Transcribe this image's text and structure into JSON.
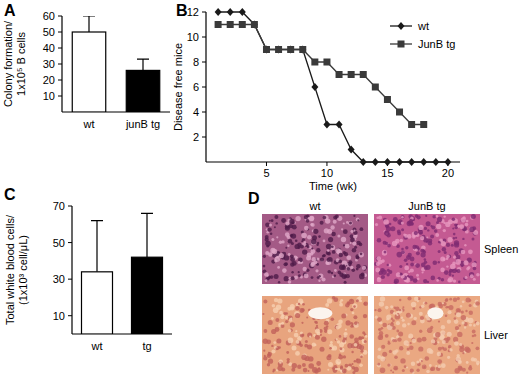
{
  "chart_data": [
    {
      "type": "bar",
      "title": "A",
      "y_label": "Colony formation/\n1x10⁵ B cells",
      "categories": [
        "wt",
        "junB tg"
      ],
      "values": [
        50,
        26
      ],
      "errors": [
        10,
        7
      ],
      "colors": [
        "#ffffff",
        "#000000"
      ],
      "ylim": [
        0,
        60
      ],
      "yticks": [
        10,
        20,
        30,
        40,
        50,
        60
      ]
    },
    {
      "type": "line",
      "title": "B",
      "x_label": "Time (wk)",
      "y_label": "Disease free mice",
      "x": [
        1,
        2,
        3,
        4,
        5,
        6,
        7,
        8,
        9,
        10,
        11,
        12,
        13,
        14,
        15,
        16,
        17,
        18,
        19,
        20
      ],
      "series": [
        {
          "name": "wt",
          "color": "#1a1a1a",
          "marker": "diamond",
          "values": [
            12,
            12,
            12,
            11,
            9,
            9,
            9,
            9,
            6,
            3,
            3,
            1,
            0,
            0,
            0,
            0,
            0,
            0,
            0,
            0
          ]
        },
        {
          "name": "JunB tg",
          "color": "#3a3a3a",
          "marker": "square",
          "values": [
            11,
            11,
            11,
            11,
            9,
            9,
            9,
            9,
            8,
            8,
            7,
            7,
            7,
            6,
            5,
            4,
            3,
            3,
            null,
            null
          ]
        }
      ],
      "xlim": [
        0,
        21
      ],
      "ylim": [
        0,
        12
      ],
      "xticks": [
        5,
        10,
        15,
        20
      ],
      "yticks": [
        2,
        4,
        6,
        8,
        10,
        12
      ],
      "legend": "upper right"
    },
    {
      "type": "bar",
      "title": "C",
      "y_label": "Total white blood cells/\n(1x10³ cell/μL)",
      "categories": [
        "wt",
        "tg"
      ],
      "values": [
        34,
        42
      ],
      "errors": [
        28,
        24
      ],
      "colors": [
        "#ffffff",
        "#000000"
      ],
      "ylim": [
        0,
        70
      ],
      "yticks": [
        10,
        30,
        50,
        70
      ]
    },
    {
      "type": "image",
      "title": "D",
      "columns": [
        "wt",
        "JunB tg"
      ],
      "rows": [
        "Spleen",
        "Liver"
      ]
    }
  ]
}
